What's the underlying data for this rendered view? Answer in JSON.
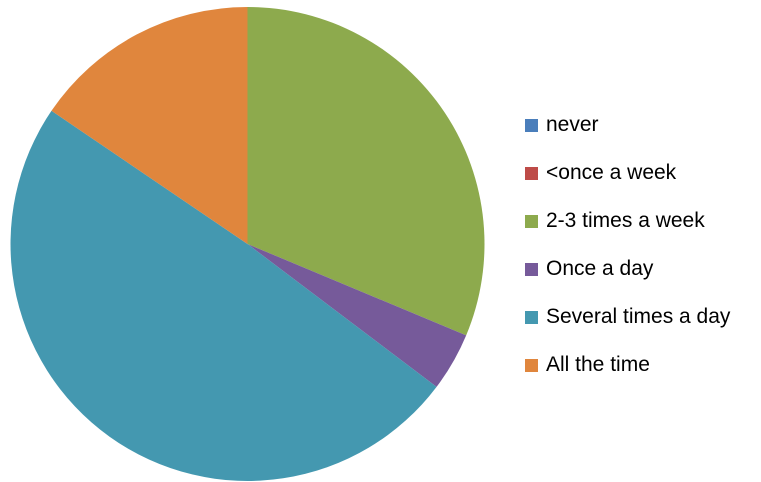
{
  "chart_data": {
    "type": "pie",
    "title": "",
    "categories": [
      "never",
      "<once a week",
      "2-3 times a week",
      "Once a day",
      "Several times a day",
      "All the time"
    ],
    "values": [
      0,
      0,
      31.3,
      4.0,
      49.2,
      15.5
    ],
    "colors": [
      "#4a7ebb",
      "#be4b48",
      "#8daa4d",
      "#765a9a",
      "#4498b0",
      "#e0863d"
    ],
    "legend_position": "right",
    "start_angle_deg": 0,
    "direction": "clockwise"
  }
}
